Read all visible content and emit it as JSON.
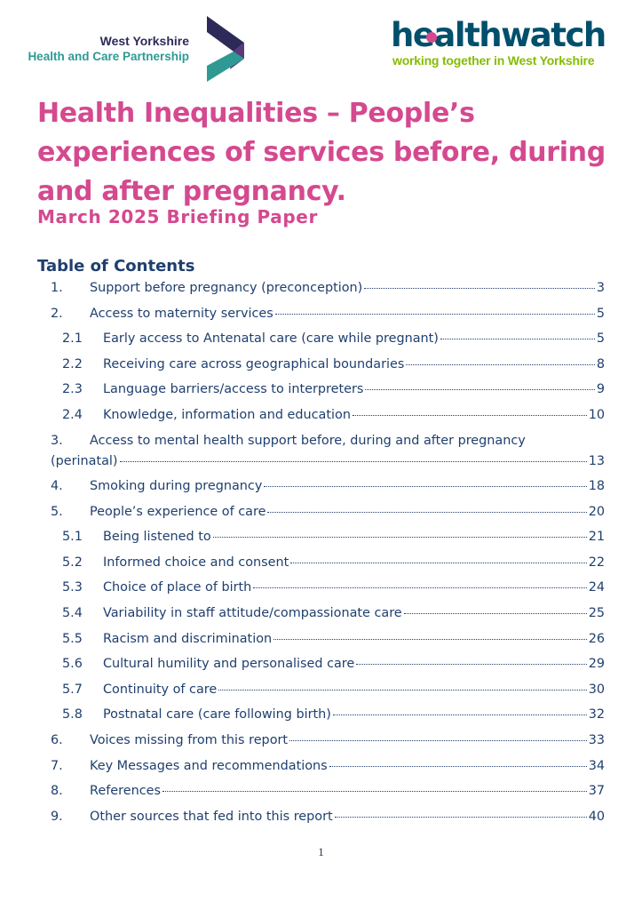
{
  "header": {
    "partnership_logo": {
      "line1": "West Yorkshire",
      "line2": "Health and Care Partnership",
      "colors": {
        "navy": "#2d2a5a",
        "teal": "#2f9a94",
        "purple": "#5b3a7a"
      }
    },
    "healthwatch_logo": {
      "wordmark": "healthwatch",
      "tagline": "working together in West Yorkshire",
      "colors": {
        "wordmark": "#004f6b",
        "dot": "#d4498f",
        "tagline": "#84bd00"
      }
    }
  },
  "document": {
    "title": "Health Inequalities – People’s experiences of services before, during and after pregnancy.",
    "subtitle": "March 2025 Briefing Paper",
    "accent_color": "#d4498f"
  },
  "toc": {
    "heading": "Table of Contents",
    "entries": [
      {
        "num": "1.",
        "label": "Support before pregnancy (preconception)",
        "page": "3",
        "level": 1
      },
      {
        "num": "2.",
        "label": "Access to maternity services",
        "page": "5",
        "level": 1
      },
      {
        "num": "2.1",
        "label": "Early access to Antenatal care (care while pregnant)",
        "page": "5",
        "level": 2
      },
      {
        "num": "2.2",
        "label": "Receiving care across geographical boundaries",
        "page": "8",
        "level": 2
      },
      {
        "num": "2.3",
        "label": "Language barriers/access to interpreters",
        "page": "9",
        "level": 2
      },
      {
        "num": "2.4",
        "label": "Knowledge, information and education",
        "page": "10",
        "level": 2
      },
      {
        "num": "3.",
        "label": "Access to mental health support before, during and after pregnancy",
        "label_cont": "(perinatal)",
        "page": "13",
        "level": 1
      },
      {
        "num": "4.",
        "label": "Smoking during pregnancy",
        "page": "18",
        "level": 1
      },
      {
        "num": "5.",
        "label": "People’s experience of care",
        "page": "20",
        "level": 1
      },
      {
        "num": "5.1",
        "label": "Being listened to",
        "page": "21",
        "level": 2
      },
      {
        "num": "5.2",
        "label": "Informed choice and consent",
        "page": "22",
        "level": 2
      },
      {
        "num": "5.3",
        "label": "Choice of place of birth",
        "page": "24",
        "level": 2
      },
      {
        "num": "5.4",
        "label": "Variability in staff attitude/compassionate care",
        "page": "25",
        "level": 2
      },
      {
        "num": "5.5",
        "label": "Racism and discrimination",
        "page": "26",
        "level": 2
      },
      {
        "num": "5.6",
        "label": "Cultural humility and personalised care",
        "page": "29",
        "level": 2
      },
      {
        "num": "5.7",
        "label": "Continuity of care",
        "page": "30",
        "level": 2
      },
      {
        "num": "5.8",
        "label": "Postnatal care (care following birth)",
        "page": "32",
        "level": 2
      },
      {
        "num": "6.",
        "label": "Voices missing from this report",
        "page": "33",
        "level": 1
      },
      {
        "num": "7.",
        "label": "Key Messages and recommendations",
        "page": "34",
        "level": 1
      },
      {
        "num": "8.",
        "label": "References",
        "page": "37",
        "level": 1
      },
      {
        "num": "9.",
        "label": "Other sources that fed into this report",
        "page": "40",
        "level": 1
      }
    ]
  },
  "footer": {
    "page_number": "1"
  }
}
